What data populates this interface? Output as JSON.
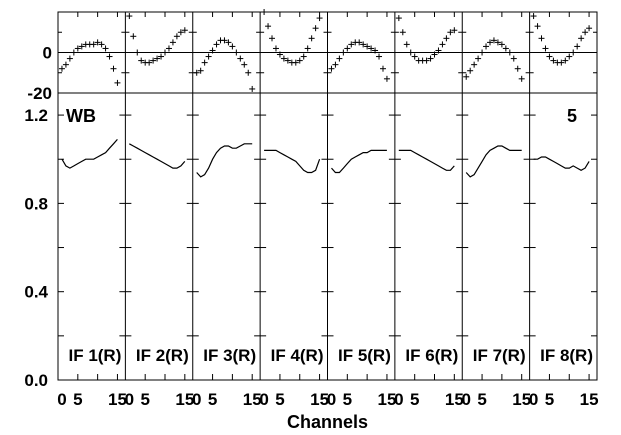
{
  "chart_data": {
    "type": "line",
    "xlabel": "Channels",
    "x_tick_labels": [
      "0",
      "5",
      "15"
    ],
    "baseline_label": "WB",
    "antenna_label": "5",
    "phase_panel": {
      "ylim": [
        -20,
        20
      ],
      "y_tick_labels": [
        "0",
        "-20"
      ],
      "marker": "plus"
    },
    "amp_panel": {
      "ylim": [
        0,
        1.3
      ],
      "y_tick_labels": [
        "1.2",
        "0.8",
        "0.4",
        "0.0"
      ]
    },
    "panels": [
      {
        "label": "IF 1(R)",
        "phase": [
          -8,
          -6,
          -3,
          0,
          2,
          3,
          4,
          4,
          4,
          5,
          4,
          2,
          -2,
          -8,
          -15
        ],
        "amp": [
          1.0,
          0.97,
          0.96,
          0.97,
          0.98,
          0.99,
          1.0,
          1.0,
          1.0,
          1.01,
          1.02,
          1.03,
          1.05,
          1.07,
          1.09
        ]
      },
      {
        "label": "IF 2(R)",
        "phase": [
          18,
          8,
          0,
          -4,
          -5,
          -5,
          -4,
          -3,
          -2,
          0,
          2,
          5,
          8,
          10,
          11
        ],
        "amp": [
          1.07,
          1.06,
          1.05,
          1.04,
          1.03,
          1.02,
          1.01,
          1.0,
          0.99,
          0.98,
          0.97,
          0.96,
          0.96,
          0.97,
          0.99
        ]
      },
      {
        "label": "IF 3(R)",
        "phase": [
          -10,
          -9,
          -5,
          -2,
          1,
          4,
          6,
          6,
          5,
          3,
          0,
          -3,
          -6,
          -10,
          -18
        ],
        "amp": [
          0.94,
          0.92,
          0.93,
          0.96,
          1.0,
          1.03,
          1.05,
          1.06,
          1.06,
          1.05,
          1.05,
          1.06,
          1.07,
          1.07,
          1.07
        ]
      },
      {
        "label": "IF 4(R)",
        "phase": [
          20,
          13,
          7,
          2,
          -1,
          -3,
          -4,
          -5,
          -5,
          -4,
          -2,
          2,
          7,
          12,
          17
        ],
        "amp": [
          1.04,
          1.04,
          1.04,
          1.04,
          1.03,
          1.02,
          1.01,
          1.0,
          0.99,
          0.97,
          0.95,
          0.94,
          0.94,
          0.95,
          1.0
        ]
      },
      {
        "label": "IF 5(R)",
        "phase": [
          -8,
          -6,
          -3,
          0,
          2,
          4,
          5,
          5,
          4,
          3,
          2,
          1,
          -2,
          -8,
          -13
        ],
        "amp": [
          0.96,
          0.94,
          0.94,
          0.96,
          0.98,
          1.0,
          1.01,
          1.02,
          1.03,
          1.03,
          1.04,
          1.04,
          1.04,
          1.04,
          1.04
        ]
      },
      {
        "label": "IF 6(R)",
        "phase": [
          17,
          10,
          4,
          0,
          -2,
          -4,
          -4,
          -4,
          -3,
          -1,
          1,
          4,
          7,
          10,
          11
        ],
        "amp": [
          1.04,
          1.04,
          1.04,
          1.04,
          1.03,
          1.02,
          1.01,
          1.0,
          0.99,
          0.98,
          0.97,
          0.96,
          0.95,
          0.95,
          0.97
        ]
      },
      {
        "label": "IF 7(R)",
        "phase": [
          -12,
          -9,
          -6,
          -3,
          0,
          3,
          5,
          6,
          5,
          4,
          2,
          0,
          -3,
          -8,
          -13
        ],
        "amp": [
          0.94,
          0.92,
          0.93,
          0.96,
          0.99,
          1.02,
          1.04,
          1.05,
          1.06,
          1.06,
          1.05,
          1.04,
          1.04,
          1.04,
          1.04
        ]
      },
      {
        "label": "IF 8(R)",
        "phase": [
          18,
          13,
          7,
          2,
          -2,
          -4,
          -5,
          -5,
          -4,
          -2,
          0,
          3,
          7,
          10,
          12
        ],
        "amp": [
          1.0,
          1.0,
          1.01,
          1.01,
          1.0,
          0.99,
          0.98,
          0.97,
          0.96,
          0.96,
          0.97,
          0.96,
          0.95,
          0.96,
          0.99
        ]
      }
    ]
  }
}
